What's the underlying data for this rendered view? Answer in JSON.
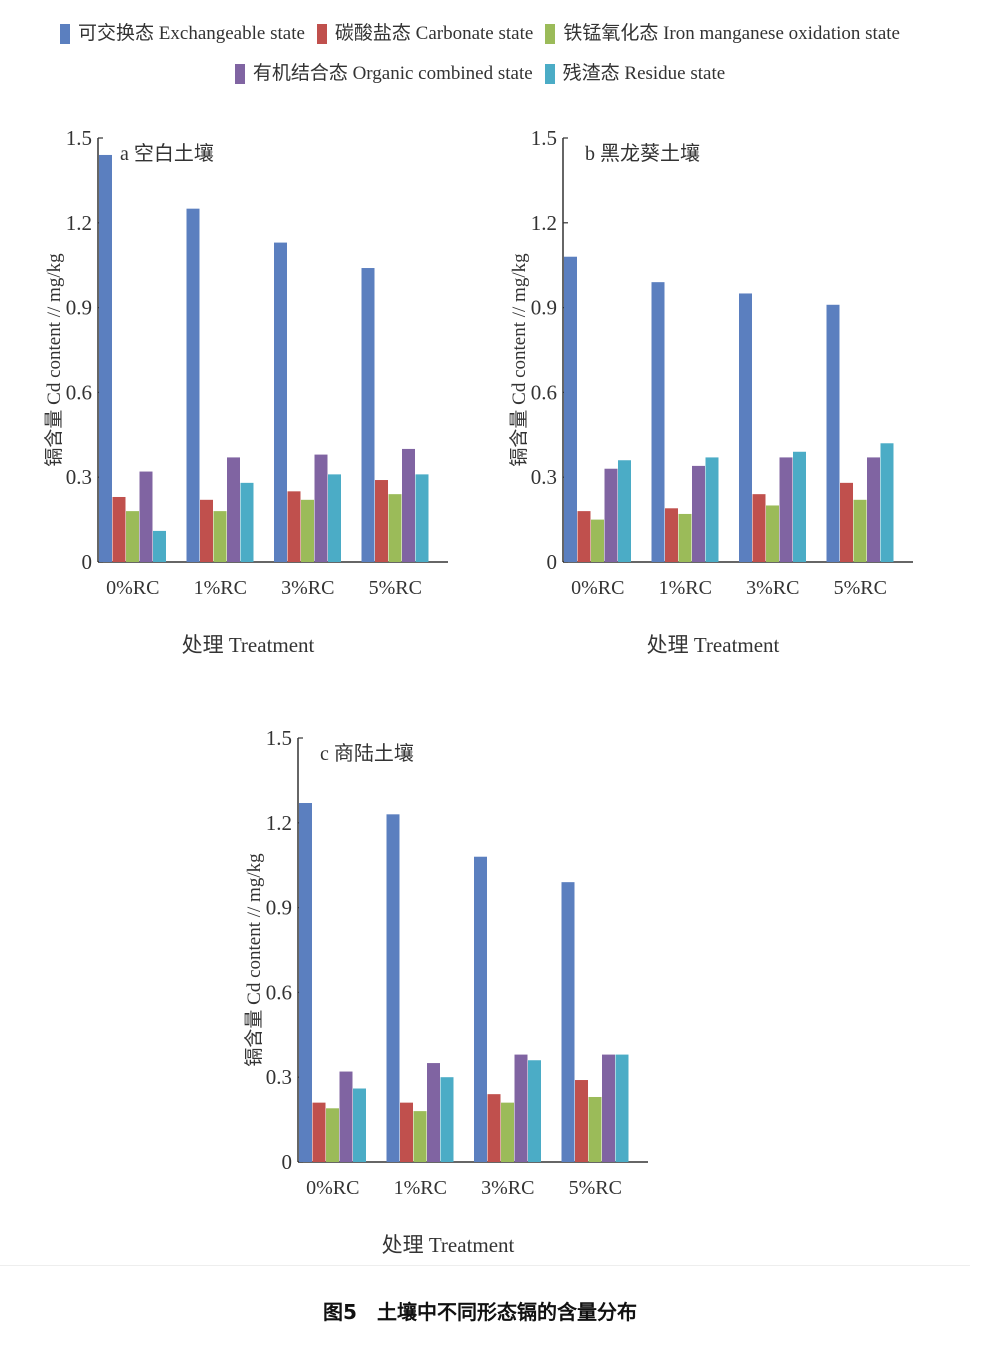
{
  "legend": [
    {
      "label": "可交换态 Exchangeable state",
      "color": "#5b7fbf"
    },
    {
      "label": "碳酸盐态 Carbonate state",
      "color": "#c0504d"
    },
    {
      "label": "铁锰氧化态 Iron manganese oxidation state",
      "color": "#9bbb59"
    },
    {
      "label": "有机结合态 Organic combined state",
      "color": "#8064a2"
    },
    {
      "label": "残渣态 Residue state",
      "color": "#4bacc6"
    }
  ],
  "caption": "图5　土壤中不同形态镉的含量分布",
  "chart_data": [
    {
      "type": "bar",
      "title": "a 空白土壤",
      "xlabel": "处理 Treatment",
      "ylabel": "镉含量 Cd content // mg/kg",
      "ylim": [
        0,
        1.5
      ],
      "yticks": [
        "0",
        "0.3",
        "0.6",
        "0.9",
        "1.2",
        "1.5"
      ],
      "categories": [
        "0%RC",
        "1%RC",
        "3%RC",
        "5%RC"
      ],
      "series": [
        {
          "name": "可交换态 Exchangeable state",
          "values": [
            1.44,
            1.25,
            1.13,
            1.04
          ]
        },
        {
          "name": "碳酸盐态 Carbonate state",
          "values": [
            0.23,
            0.22,
            0.25,
            0.29
          ]
        },
        {
          "name": "铁锰氧化态 Iron manganese oxidation state",
          "values": [
            0.18,
            0.18,
            0.22,
            0.24
          ]
        },
        {
          "name": "有机结合态 Organic combined state",
          "values": [
            0.32,
            0.37,
            0.38,
            0.4
          ]
        },
        {
          "name": "残渣态 Residue state",
          "values": [
            0.11,
            0.28,
            0.31,
            0.31
          ]
        }
      ]
    },
    {
      "type": "bar",
      "title": "b 黑龙葵土壤",
      "xlabel": "处理 Treatment",
      "ylabel": "镉含量 Cd content // mg/kg",
      "ylim": [
        0,
        1.5
      ],
      "yticks": [
        "0",
        "0.3",
        "0.6",
        "0.9",
        "1.2",
        "1.5"
      ],
      "categories": [
        "0%RC",
        "1%RC",
        "3%RC",
        "5%RC"
      ],
      "series": [
        {
          "name": "可交换态 Exchangeable state",
          "values": [
            1.08,
            0.99,
            0.95,
            0.91
          ]
        },
        {
          "name": "碳酸盐态 Carbonate state",
          "values": [
            0.18,
            0.19,
            0.24,
            0.28
          ]
        },
        {
          "name": "铁锰氧化态 Iron manganese oxidation state",
          "values": [
            0.15,
            0.17,
            0.2,
            0.22
          ]
        },
        {
          "name": "有机结合态 Organic combined state",
          "values": [
            0.33,
            0.34,
            0.37,
            0.37
          ]
        },
        {
          "name": "残渣态 Residue state",
          "values": [
            0.36,
            0.37,
            0.39,
            0.42
          ]
        }
      ]
    },
    {
      "type": "bar",
      "title": "c 商陆土壤",
      "xlabel": "处理 Treatment",
      "ylabel": "镉含量 Cd content // mg/kg",
      "ylim": [
        0,
        1.5
      ],
      "yticks": [
        "0",
        "0.3",
        "0.6",
        "0.9",
        "1.2",
        "1.5"
      ],
      "categories": [
        "0%RC",
        "1%RC",
        "3%RC",
        "5%RC"
      ],
      "series": [
        {
          "name": "可交换态 Exchangeable state",
          "values": [
            1.27,
            1.23,
            1.08,
            0.99
          ]
        },
        {
          "name": "碳酸盐态 Carbonate state",
          "values": [
            0.21,
            0.21,
            0.24,
            0.29
          ]
        },
        {
          "name": "铁锰氧化态 Iron manganese oxidation state",
          "values": [
            0.19,
            0.18,
            0.21,
            0.23
          ]
        },
        {
          "name": "有机结合态 Organic combined state",
          "values": [
            0.32,
            0.35,
            0.38,
            0.38
          ]
        },
        {
          "name": "残渣态 Residue state",
          "values": [
            0.26,
            0.3,
            0.36,
            0.38
          ]
        }
      ]
    }
  ]
}
